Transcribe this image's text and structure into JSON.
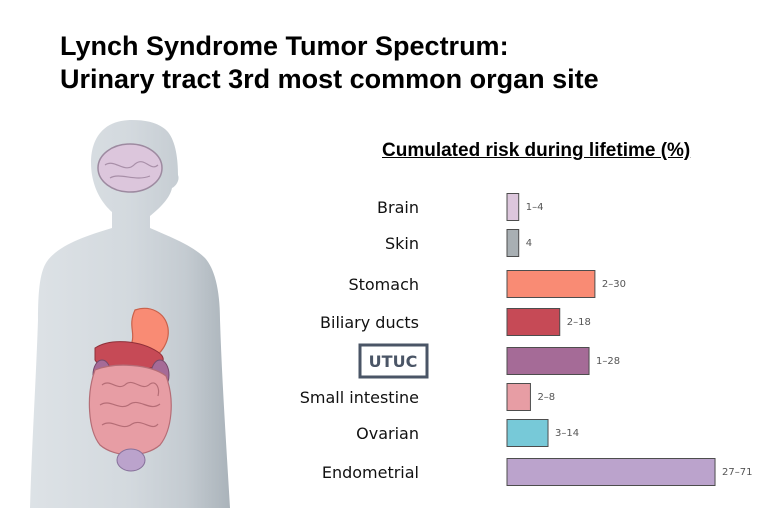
{
  "slide": {
    "title_line1": "Lynch Syndrome Tumor Spectrum:",
    "title_line2": "Urinary tract 3rd most common organ site"
  },
  "chart_data": {
    "type": "bar",
    "orientation": "horizontal",
    "title": "Cumulated risk during lifetime (%)",
    "categories": [
      "Brain",
      "Skin",
      "Stomach",
      "Biliary ducts",
      "UTUC",
      "Small intestine",
      "Ovarian",
      "Endometrial"
    ],
    "ranges": [
      [
        1,
        4
      ],
      [
        4,
        4
      ],
      [
        2,
        30
      ],
      [
        2,
        18
      ],
      [
        1,
        28
      ],
      [
        2,
        8
      ],
      [
        3,
        14
      ],
      [
        27,
        71
      ]
    ],
    "value_labels": [
      "1–4",
      "4",
      "2–30",
      "2–18",
      "1–28",
      "2–8",
      "3–14",
      "27–71"
    ],
    "colors": [
      "#dcc6dc",
      "#a8afb3",
      "#f98b74",
      "#c64a56",
      "#a56b97",
      "#e79da4",
      "#77c9d8",
      "#bba3cc"
    ],
    "highlighted_category": "UTUC",
    "grid": false,
    "legend": "none"
  }
}
